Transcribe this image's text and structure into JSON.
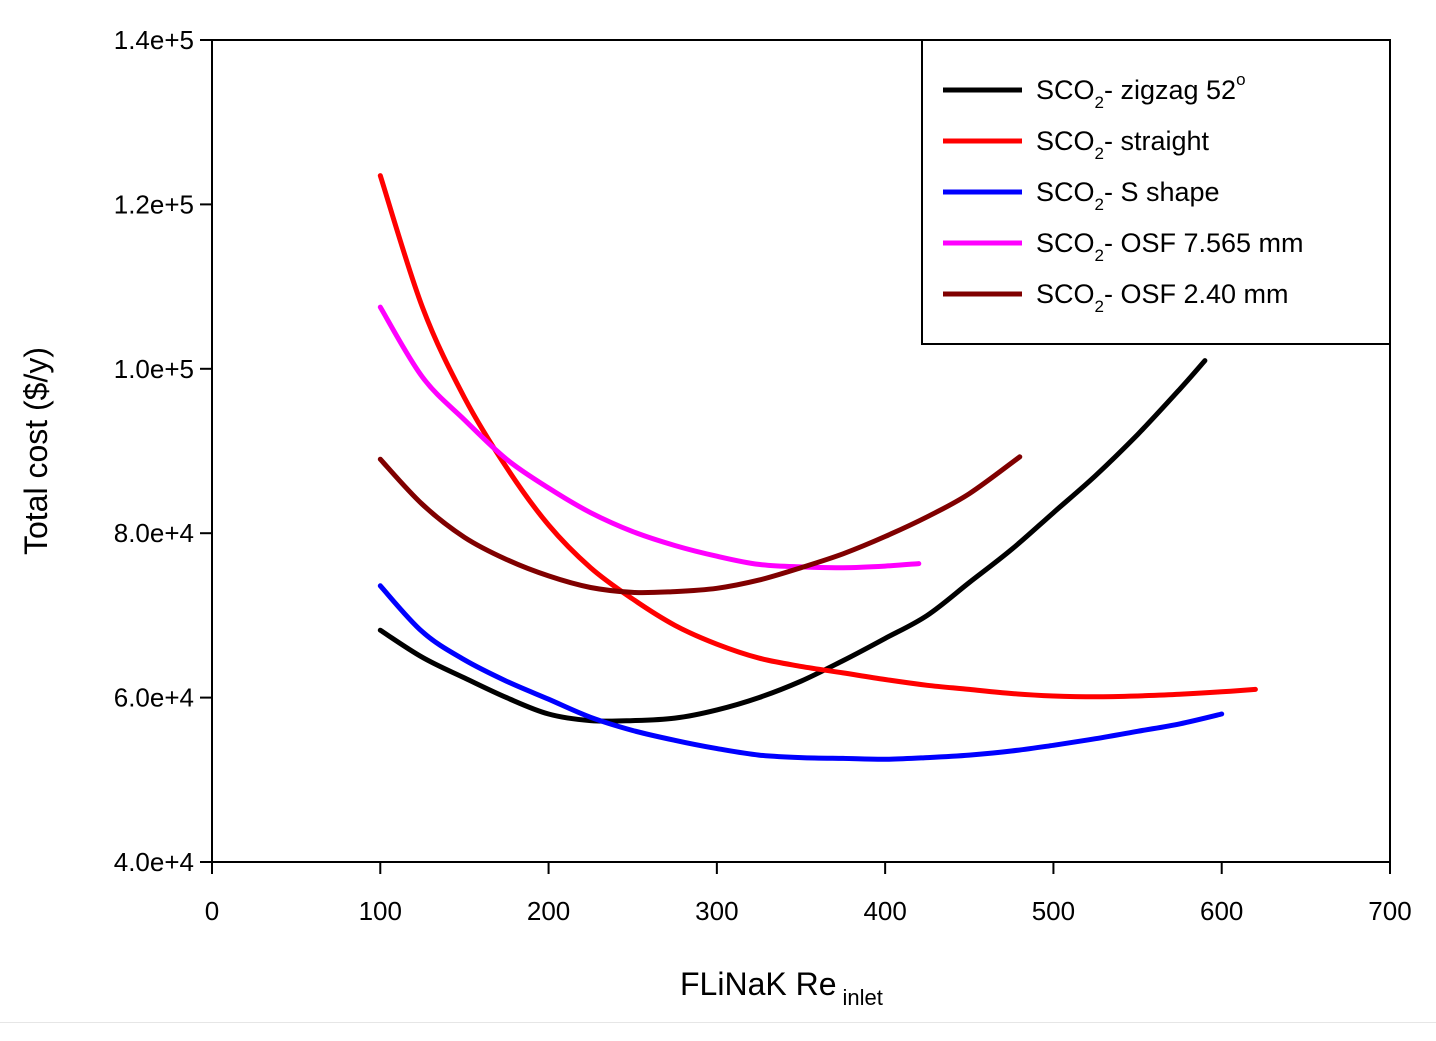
{
  "chart_data": {
    "type": "line",
    "xlabel": "FLiNaK Re",
    "xlabel_subscript": "inlet",
    "ylabel": "Total cost ($/y)",
    "xlim": [
      0,
      700
    ],
    "ylim": [
      40000,
      140000
    ],
    "x_ticks": [
      0,
      100,
      200,
      300,
      400,
      500,
      600,
      700
    ],
    "x_tick_labels": [
      "0",
      "100",
      "200",
      "300",
      "400",
      "500",
      "600",
      "700"
    ],
    "y_ticks": [
      40000,
      60000,
      80000,
      100000,
      120000,
      140000
    ],
    "y_tick_labels": [
      "4.0e+4",
      "6.0e+4",
      "8.0e+4",
      "1.0e+5",
      "1.2e+5",
      "1.4e+5"
    ],
    "grid": false,
    "legend_position": "top-right",
    "series": [
      {
        "name": "SCO2- zigzag 52o",
        "legend_parts": {
          "prefix": "SCO",
          "sub": "2",
          "rest": "- zigzag 52",
          "sup": "o"
        },
        "color": "#000000",
        "x": [
          100,
          125,
          150,
          175,
          200,
          225,
          250,
          275,
          300,
          325,
          350,
          375,
          400,
          425,
          450,
          475,
          500,
          525,
          550,
          575,
          590
        ],
        "y": [
          68200,
          64900,
          62400,
          60000,
          58000,
          57200,
          57200,
          57500,
          58500,
          60000,
          62000,
          64500,
          67200,
          70000,
          74000,
          78000,
          82500,
          87000,
          92000,
          97500,
          101000
        ]
      },
      {
        "name": "SCO2- straight",
        "legend_parts": {
          "prefix": "SCO",
          "sub": "2",
          "rest": "- straight",
          "sup": ""
        },
        "color": "#ff0000",
        "x": [
          100,
          125,
          150,
          175,
          200,
          225,
          250,
          275,
          300,
          325,
          350,
          375,
          400,
          425,
          450,
          475,
          500,
          525,
          550,
          575,
          600,
          620
        ],
        "y": [
          123500,
          107500,
          96500,
          88000,
          81000,
          75800,
          72000,
          68800,
          66500,
          64800,
          63800,
          63000,
          62200,
          61500,
          61000,
          60500,
          60200,
          60100,
          60200,
          60400,
          60700,
          61000
        ]
      },
      {
        "name": "SCO2- S shape",
        "legend_parts": {
          "prefix": "SCO",
          "sub": "2",
          "rest": "- S shape",
          "sup": ""
        },
        "color": "#0000ff",
        "x": [
          100,
          125,
          150,
          175,
          200,
          225,
          250,
          275,
          300,
          325,
          350,
          375,
          400,
          425,
          450,
          475,
          500,
          525,
          550,
          575,
          600
        ],
        "y": [
          73600,
          68000,
          64600,
          62000,
          59800,
          57600,
          56000,
          54800,
          53800,
          53000,
          52700,
          52600,
          52500,
          52700,
          53000,
          53500,
          54200,
          55000,
          55900,
          56800,
          58000
        ]
      },
      {
        "name": "SCO2- OSF 7.565 mm",
        "legend_parts": {
          "prefix": "SCO",
          "sub": "2",
          "rest": "- OSF 7.565 mm",
          "sup": ""
        },
        "color": "#ff00ff",
        "x": [
          100,
          125,
          150,
          175,
          200,
          225,
          250,
          275,
          300,
          325,
          350,
          375,
          400,
          420
        ],
        "y": [
          107500,
          99000,
          93800,
          89000,
          85500,
          82500,
          80200,
          78500,
          77200,
          76200,
          75900,
          75800,
          76000,
          76300
        ]
      },
      {
        "name": "SCO2- OSF 2.40 mm",
        "legend_parts": {
          "prefix": "SCO",
          "sub": "2",
          "rest": "- OSF 2.40 mm",
          "sup": ""
        },
        "color": "#800000",
        "x": [
          100,
          125,
          150,
          175,
          200,
          225,
          250,
          275,
          300,
          325,
          350,
          375,
          400,
          425,
          450,
          480
        ],
        "y": [
          89000,
          83500,
          79500,
          76800,
          74800,
          73400,
          72800,
          72900,
          73300,
          74300,
          75800,
          77500,
          79600,
          82000,
          84800,
          89300
        ]
      }
    ]
  }
}
